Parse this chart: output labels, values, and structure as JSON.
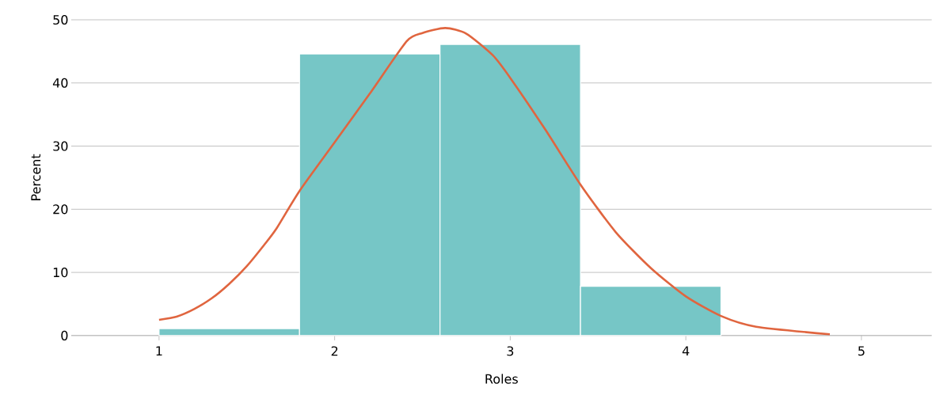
{
  "chart_data": {
    "type": "histogram",
    "xlabel": "Roles",
    "ylabel": "Percent",
    "bins": [
      1.0,
      1.8,
      2.6,
      3.4,
      4.2
    ],
    "values": [
      1.1,
      44.6,
      46.1,
      7.8
    ],
    "color": "#76c6c6",
    "series": [
      {
        "type": "line",
        "color": "#e0653f",
        "x": [
          1.0,
          1.1,
          1.2,
          1.3,
          1.4,
          1.5,
          1.6,
          1.67,
          1.8,
          2.0,
          2.2,
          2.41,
          2.5,
          2.63,
          2.75,
          2.9,
          3.0,
          3.2,
          3.4,
          3.6,
          3.8,
          4.0,
          4.2,
          4.4,
          4.82
        ],
        "values": [
          2.5,
          3.0,
          4.2,
          5.9,
          8.2,
          11.0,
          14.4,
          17.0,
          22.9,
          30.6,
          38.3,
          46.6,
          47.9,
          48.7,
          47.8,
          44.4,
          40.8,
          32.6,
          23.9,
          16.4,
          10.7,
          6.2,
          3.1,
          1.4,
          0.2
        ]
      }
    ],
    "xlim": [
      0.5,
      5.4
    ],
    "xticks": [
      1,
      2,
      3,
      4,
      5
    ],
    "ylim": [
      0,
      50
    ],
    "yticks": [
      0,
      10,
      20,
      30,
      40,
      50
    ],
    "grid": "y"
  }
}
